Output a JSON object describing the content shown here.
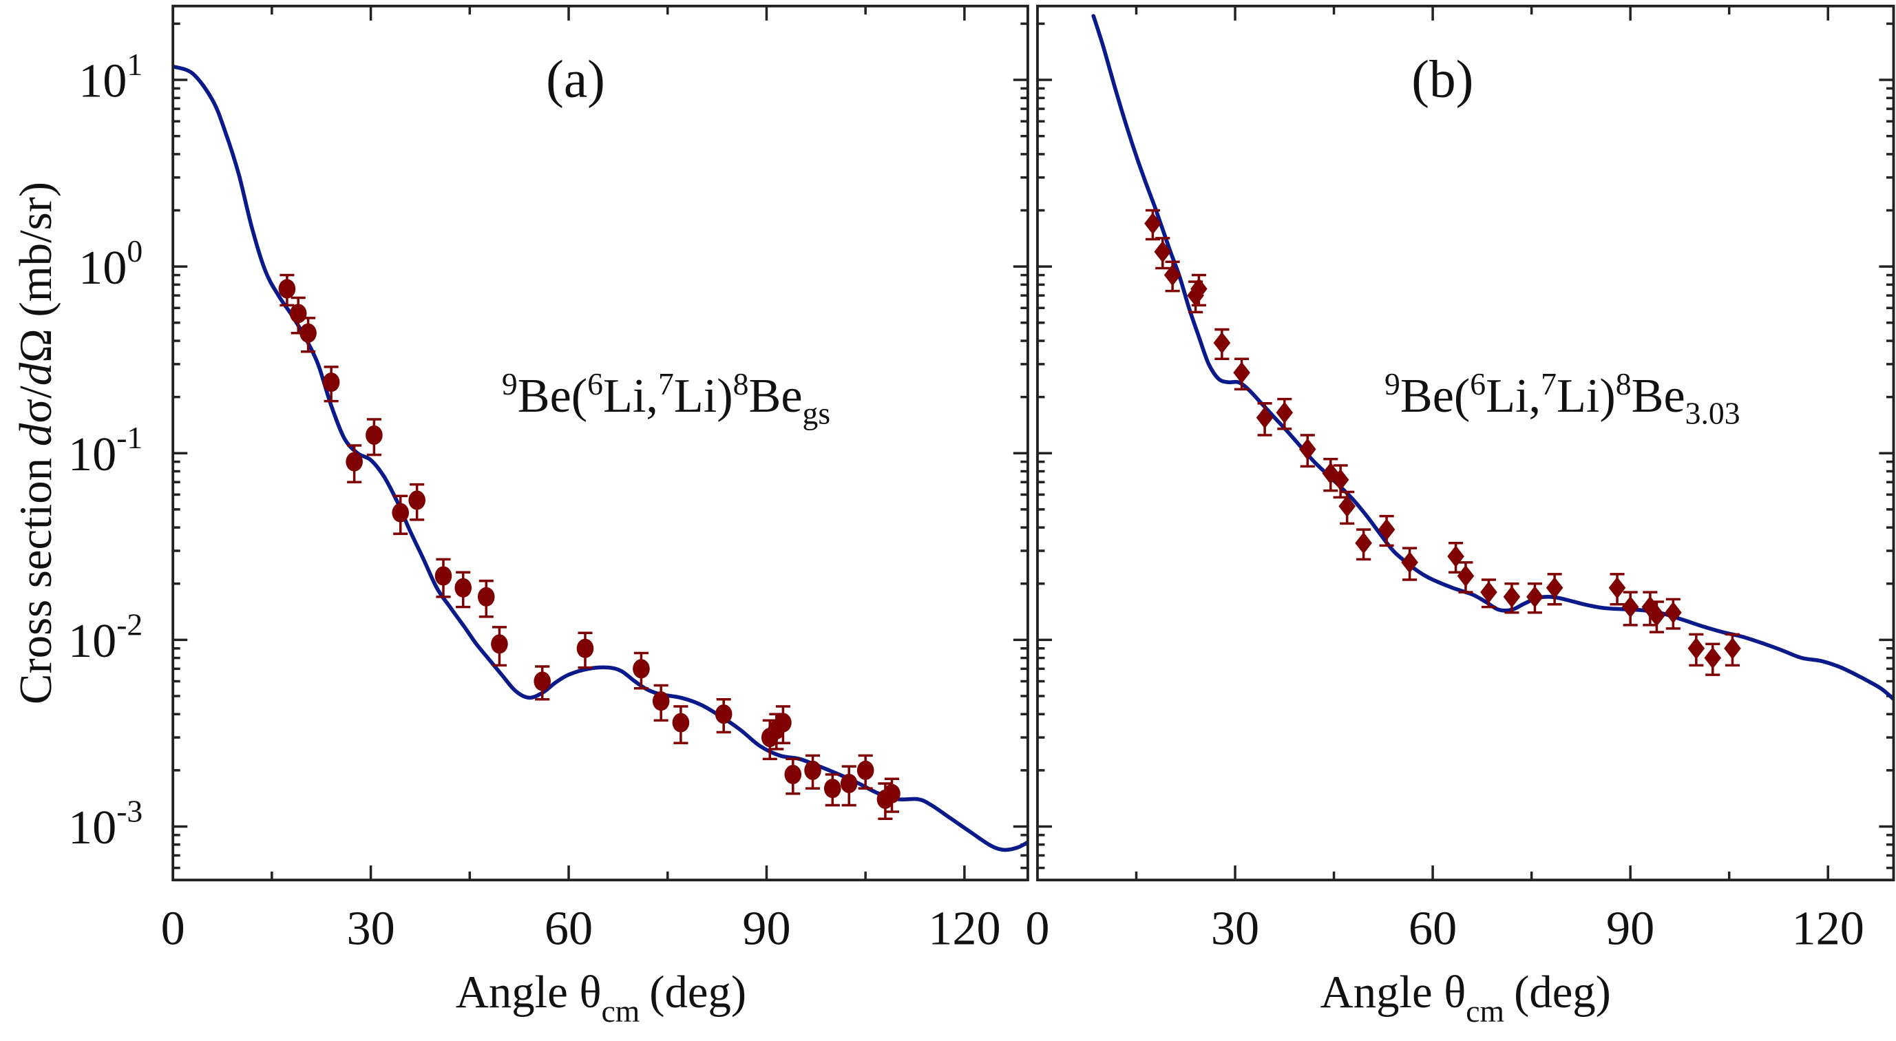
{
  "colors": {
    "curve": "#0a1a8a",
    "data": "#7f0000",
    "axis": "#222222"
  },
  "chart_data": [
    {
      "type": "scatter",
      "panel_label": "(a)",
      "reaction": {
        "pre": "9",
        "a": "Be(",
        "s1": "6",
        "b": "Li,",
        "s2": "7",
        "c": "Li)",
        "s3": "8",
        "d": "Be",
        "sub": "gs"
      },
      "xlabel": {
        "main": "Angle θ",
        "sub": "cm",
        "unit": "(deg)"
      },
      "ylabel": "Cross section dσ/dΩ (mb/sr)",
      "yscale": "log",
      "xlim": [
        0,
        129.5
      ],
      "ylim": [
        0.0005,
        22
      ],
      "xticks": [
        0,
        30,
        60,
        90,
        120
      ],
      "yticks": [
        {
          "base": "10",
          "exp": "1",
          "v": 10
        },
        {
          "base": "10",
          "exp": "0",
          "v": 1
        },
        {
          "base": "10",
          "exp": "-1",
          "v": 0.1
        },
        {
          "base": "10",
          "exp": "-2",
          "v": 0.01
        },
        {
          "base": "10",
          "exp": "-3",
          "v": 0.001
        }
      ],
      "marker": "circle",
      "points": [
        {
          "x": 17.3,
          "y": 0.76,
          "err": 0.14
        },
        {
          "x": 19.0,
          "y": 0.56,
          "err": 0.12
        },
        {
          "x": 20.5,
          "y": 0.44,
          "err": 0.09
        },
        {
          "x": 24.0,
          "y": 0.24,
          "err": 0.05
        },
        {
          "x": 27.5,
          "y": 0.09,
          "err": 0.02
        },
        {
          "x": 30.5,
          "y": 0.125,
          "err": 0.027
        },
        {
          "x": 34.5,
          "y": 0.048,
          "err": 0.011
        },
        {
          "x": 37.0,
          "y": 0.056,
          "err": 0.012
        },
        {
          "x": 41.0,
          "y": 0.022,
          "err": 0.005
        },
        {
          "x": 44.0,
          "y": 0.019,
          "err": 0.004
        },
        {
          "x": 47.5,
          "y": 0.017,
          "err": 0.0037
        },
        {
          "x": 49.5,
          "y": 0.0095,
          "err": 0.0022
        },
        {
          "x": 56.0,
          "y": 0.006,
          "err": 0.0012
        },
        {
          "x": 62.5,
          "y": 0.009,
          "err": 0.0019
        },
        {
          "x": 71.0,
          "y": 0.007,
          "err": 0.0015
        },
        {
          "x": 74.0,
          "y": 0.0047,
          "err": 0.001
        },
        {
          "x": 77.0,
          "y": 0.0036,
          "err": 0.0008
        },
        {
          "x": 83.5,
          "y": 0.004,
          "err": 0.0008
        },
        {
          "x": 90.5,
          "y": 0.003,
          "err": 0.0007
        },
        {
          "x": 91.5,
          "y": 0.0033,
          "err": 0.0007
        },
        {
          "x": 92.5,
          "y": 0.0036,
          "err": 0.0008
        },
        {
          "x": 94.0,
          "y": 0.0019,
          "err": 0.0004
        },
        {
          "x": 97.0,
          "y": 0.002,
          "err": 0.0004
        },
        {
          "x": 100.0,
          "y": 0.0016,
          "err": 0.0003
        },
        {
          "x": 102.5,
          "y": 0.0017,
          "err": 0.0004
        },
        {
          "x": 105.0,
          "y": 0.002,
          "err": 0.0004
        },
        {
          "x": 108.0,
          "y": 0.0014,
          "err": 0.0003
        },
        {
          "x": 109.0,
          "y": 0.0015,
          "err": 0.0003
        }
      ],
      "curve": [
        [
          0,
          11.8
        ],
        [
          3,
          10.8
        ],
        [
          6,
          7.8
        ],
        [
          8,
          5.2
        ],
        [
          10,
          3.1
        ],
        [
          12,
          1.6
        ],
        [
          14,
          0.95
        ],
        [
          16,
          0.7
        ],
        [
          18,
          0.55
        ],
        [
          20,
          0.42
        ],
        [
          22,
          0.3
        ],
        [
          24,
          0.18
        ],
        [
          26,
          0.12
        ],
        [
          28,
          0.1
        ],
        [
          30,
          0.092
        ],
        [
          32,
          0.075
        ],
        [
          34,
          0.055
        ],
        [
          36,
          0.038
        ],
        [
          38,
          0.027
        ],
        [
          40,
          0.019
        ],
        [
          42,
          0.015
        ],
        [
          44,
          0.012
        ],
        [
          46,
          0.0095
        ],
        [
          48,
          0.0078
        ],
        [
          50,
          0.0064
        ],
        [
          52,
          0.0053
        ],
        [
          54,
          0.0049
        ],
        [
          56,
          0.0052
        ],
        [
          58,
          0.0059
        ],
        [
          60,
          0.0065
        ],
        [
          63,
          0.007
        ],
        [
          66,
          0.0071
        ],
        [
          68,
          0.0068
        ],
        [
          70,
          0.006
        ],
        [
          72,
          0.0054
        ],
        [
          74,
          0.0051
        ],
        [
          77,
          0.0049
        ],
        [
          80,
          0.0045
        ],
        [
          83,
          0.0039
        ],
        [
          86,
          0.0033
        ],
        [
          89,
          0.0027
        ],
        [
          92,
          0.0024
        ],
        [
          95,
          0.0023
        ],
        [
          98,
          0.0021
        ],
        [
          101,
          0.0019
        ],
        [
          104,
          0.0017
        ],
        [
          107,
          0.0015
        ],
        [
          110,
          0.0014
        ],
        [
          113,
          0.0014
        ],
        [
          115,
          0.0013
        ],
        [
          118,
          0.0011
        ],
        [
          121,
          0.00093
        ],
        [
          124,
          0.00079
        ],
        [
          126,
          0.00075
        ],
        [
          128,
          0.00077
        ],
        [
          129.5,
          0.00082
        ]
      ]
    },
    {
      "type": "scatter",
      "panel_label": "(b)",
      "reaction": {
        "pre": "9",
        "a": "Be(",
        "s1": "6",
        "b": "Li,",
        "s2": "7",
        "c": "Li)",
        "s3": "8",
        "d": "Be",
        "sub": "3.03"
      },
      "xlabel": {
        "main": "Angle θ",
        "sub": "cm",
        "unit": "(deg)"
      },
      "ylabel": "",
      "yscale": "log",
      "xlim": [
        0,
        130
      ],
      "ylim": [
        0.0005,
        22
      ],
      "xticks": [
        0,
        30,
        60,
        90,
        120
      ],
      "marker": "diamond",
      "points": [
        {
          "x": 17.5,
          "y": 1.7,
          "err": 0.3
        },
        {
          "x": 19.0,
          "y": 1.2,
          "err": 0.22
        },
        {
          "x": 20.5,
          "y": 0.9,
          "err": 0.16
        },
        {
          "x": 24.0,
          "y": 0.7,
          "err": 0.13
        },
        {
          "x": 24.5,
          "y": 0.76,
          "err": 0.14
        },
        {
          "x": 28.0,
          "y": 0.39,
          "err": 0.07
        },
        {
          "x": 31.0,
          "y": 0.27,
          "err": 0.05
        },
        {
          "x": 34.5,
          "y": 0.155,
          "err": 0.03
        },
        {
          "x": 37.5,
          "y": 0.165,
          "err": 0.03
        },
        {
          "x": 41.0,
          "y": 0.105,
          "err": 0.02
        },
        {
          "x": 44.5,
          "y": 0.078,
          "err": 0.015
        },
        {
          "x": 46.0,
          "y": 0.072,
          "err": 0.014
        },
        {
          "x": 47.0,
          "y": 0.052,
          "err": 0.01
        },
        {
          "x": 49.5,
          "y": 0.033,
          "err": 0.006
        },
        {
          "x": 53.0,
          "y": 0.039,
          "err": 0.007
        },
        {
          "x": 56.5,
          "y": 0.026,
          "err": 0.005
        },
        {
          "x": 63.5,
          "y": 0.028,
          "err": 0.005
        },
        {
          "x": 65.0,
          "y": 0.022,
          "err": 0.004
        },
        {
          "x": 68.5,
          "y": 0.018,
          "err": 0.003
        },
        {
          "x": 72.0,
          "y": 0.017,
          "err": 0.003
        },
        {
          "x": 75.5,
          "y": 0.017,
          "err": 0.003
        },
        {
          "x": 78.5,
          "y": 0.019,
          "err": 0.0035
        },
        {
          "x": 88.0,
          "y": 0.019,
          "err": 0.0035
        },
        {
          "x": 90.0,
          "y": 0.015,
          "err": 0.003
        },
        {
          "x": 93.0,
          "y": 0.015,
          "err": 0.003
        },
        {
          "x": 94.0,
          "y": 0.0135,
          "err": 0.0025
        },
        {
          "x": 96.5,
          "y": 0.014,
          "err": 0.0025
        },
        {
          "x": 100.0,
          "y": 0.009,
          "err": 0.0017
        },
        {
          "x": 102.5,
          "y": 0.008,
          "err": 0.0015
        },
        {
          "x": 105.5,
          "y": 0.009,
          "err": 0.0017
        }
      ],
      "curve": [
        [
          8.5,
          22
        ],
        [
          10,
          15
        ],
        [
          12,
          8.5
        ],
        [
          14,
          5.0
        ],
        [
          16,
          3.1
        ],
        [
          18,
          2.0
        ],
        [
          20,
          1.25
        ],
        [
          21.5,
          0.9
        ],
        [
          23,
          0.6
        ],
        [
          24.5,
          0.42
        ],
        [
          26,
          0.3
        ],
        [
          27.5,
          0.25
        ],
        [
          29,
          0.24
        ],
        [
          30.5,
          0.24
        ],
        [
          32,
          0.22
        ],
        [
          34,
          0.185
        ],
        [
          36,
          0.155
        ],
        [
          38,
          0.13
        ],
        [
          40,
          0.108
        ],
        [
          42,
          0.09
        ],
        [
          44,
          0.077
        ],
        [
          46,
          0.066
        ],
        [
          48,
          0.056
        ],
        [
          50,
          0.046
        ],
        [
          52,
          0.037
        ],
        [
          54,
          0.03
        ],
        [
          56,
          0.026
        ],
        [
          58,
          0.023
        ],
        [
          60,
          0.021
        ],
        [
          63,
          0.019
        ],
        [
          66,
          0.0175
        ],
        [
          68,
          0.016
        ],
        [
          70,
          0.0145
        ],
        [
          72,
          0.0145
        ],
        [
          74,
          0.0157
        ],
        [
          76,
          0.0168
        ],
        [
          78,
          0.017
        ],
        [
          80,
          0.0165
        ],
        [
          83,
          0.0155
        ],
        [
          86,
          0.0148
        ],
        [
          89,
          0.0146
        ],
        [
          92,
          0.0144
        ],
        [
          95,
          0.0138
        ],
        [
          98,
          0.0128
        ],
        [
          101,
          0.0118
        ],
        [
          104,
          0.011
        ],
        [
          107,
          0.0104
        ],
        [
          110,
          0.0096
        ],
        [
          113,
          0.0088
        ],
        [
          116,
          0.008
        ],
        [
          119,
          0.0077
        ],
        [
          122,
          0.0071
        ],
        [
          125,
          0.0063
        ],
        [
          128,
          0.0055
        ],
        [
          130,
          0.0048
        ]
      ]
    }
  ]
}
